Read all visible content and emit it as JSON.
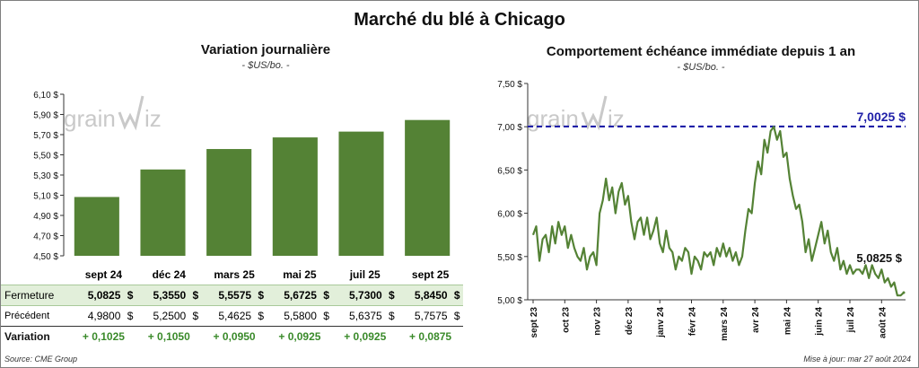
{
  "main_title": "Marché du blé à Chicago",
  "left_panel": {
    "title": "Variation journalière",
    "unit": "- $US/bo. -"
  },
  "right_panel": {
    "title": "Comportement échéance immédiate depuis 1 an",
    "unit": "- $US/bo. -"
  },
  "watermark": {
    "text_left": "grain",
    "text_right": "iz"
  },
  "colors": {
    "bar": "#548235",
    "line": "#548235",
    "ref_line": "#1f1fa8",
    "ref_label": "#1f1fa8",
    "fermeture_bg": "#e2efda",
    "variation_text": "#3a8a2a"
  },
  "table": {
    "row_labels": {
      "fermeture": "Fermeture",
      "precedent": "Précédent",
      "variation": "Variation"
    },
    "currency": "$",
    "columns": [
      {
        "contract": "sept 24",
        "fermeture": "5,0825",
        "precedent": "4,9800",
        "variation": "+ 0,1025"
      },
      {
        "contract": "déc 24",
        "fermeture": "5,3550",
        "precedent": "5,2500",
        "variation": "+ 0,1050"
      },
      {
        "contract": "mars 25",
        "fermeture": "5,5575",
        "precedent": "5,4625",
        "variation": "+ 0,0950"
      },
      {
        "contract": "mai 25",
        "fermeture": "5,6725",
        "precedent": "5,5800",
        "variation": "+ 0,0925"
      },
      {
        "contract": "juil 25",
        "fermeture": "5,7300",
        "precedent": "5,6375",
        "variation": "+ 0,0925"
      },
      {
        "contract": "sept 25",
        "fermeture": "5,8450",
        "precedent": "5,7575",
        "variation": "+ 0,0875"
      }
    ]
  },
  "footer": {
    "source": "Source: CME Group",
    "updated": "Mise à jour: mar 27 août 2024"
  },
  "chart_data": [
    {
      "type": "bar",
      "title": "Variation journalière",
      "categories": [
        "sept 24",
        "déc 24",
        "mars 25",
        "mai 25",
        "juil 25",
        "sept 25"
      ],
      "values": [
        5.0825,
        5.355,
        5.5575,
        5.6725,
        5.73,
        5.845
      ],
      "ylim": [
        4.5,
        6.1
      ],
      "yticks": [
        4.5,
        4.7,
        4.9,
        5.1,
        5.3,
        5.5,
        5.7,
        5.9,
        6.1
      ],
      "ytick_labels": [
        "4,50 $",
        "4,70 $",
        "4,90 $",
        "5,10 $",
        "5,30 $",
        "5,50 $",
        "5,70 $",
        "5,90 $",
        "6,10 $"
      ],
      "grid": false
    },
    {
      "type": "line",
      "title": "Comportement échéance immédiate depuis 1 an",
      "ylim": [
        5.0,
        7.5
      ],
      "yticks": [
        5.0,
        5.5,
        6.0,
        6.5,
        7.0,
        7.5
      ],
      "ytick_labels": [
        "5,00 $",
        "5,50 $",
        "6,00 $",
        "6,50 $",
        "7,00 $",
        "7,50 $"
      ],
      "xticks": [
        "sept 23",
        "oct 23",
        "nov 23",
        "déc 23",
        "janv 24",
        "févr 24",
        "mars 24",
        "avr 24",
        "mai 24",
        "juin 24",
        "juil 24",
        "août 24"
      ],
      "reference_line": {
        "value": 7.0025,
        "label": "7,0025 $"
      },
      "last_value_label": "5,0825 $",
      "x": [
        0,
        0.1,
        0.2,
        0.3,
        0.4,
        0.5,
        0.6,
        0.7,
        0.8,
        0.9,
        1.0,
        1.1,
        1.2,
        1.3,
        1.4,
        1.5,
        1.6,
        1.7,
        1.8,
        1.9,
        2.0,
        2.1,
        2.2,
        2.3,
        2.4,
        2.5,
        2.6,
        2.7,
        2.8,
        2.9,
        3.0,
        3.1,
        3.2,
        3.3,
        3.4,
        3.5,
        3.6,
        3.7,
        3.8,
        3.9,
        4.0,
        4.1,
        4.2,
        4.3,
        4.4,
        4.5,
        4.6,
        4.7,
        4.8,
        4.9,
        5.0,
        5.1,
        5.2,
        5.3,
        5.4,
        5.5,
        5.6,
        5.7,
        5.8,
        5.9,
        6.0,
        6.1,
        6.2,
        6.3,
        6.4,
        6.5,
        6.6,
        6.7,
        6.8,
        6.9,
        7.0,
        7.1,
        7.2,
        7.3,
        7.4,
        7.5,
        7.6,
        7.7,
        7.8,
        7.9,
        8.0,
        8.1,
        8.2,
        8.3,
        8.4,
        8.5,
        8.6,
        8.7,
        8.8,
        8.9,
        9.0,
        9.1,
        9.2,
        9.3,
        9.4,
        9.5,
        9.6,
        9.7,
        9.8,
        9.9,
        10.0,
        10.1,
        10.2,
        10.3,
        10.4,
        10.5,
        10.6,
        10.7,
        10.8,
        10.9,
        11.0,
        11.1,
        11.2,
        11.3,
        11.4,
        11.5,
        11.6,
        11.7
      ],
      "y": [
        5.75,
        5.85,
        5.45,
        5.7,
        5.75,
        5.55,
        5.85,
        5.65,
        5.9,
        5.75,
        5.85,
        5.6,
        5.75,
        5.6,
        5.5,
        5.45,
        5.6,
        5.35,
        5.5,
        5.55,
        5.4,
        6.0,
        6.15,
        6.4,
        6.15,
        6.3,
        6.0,
        6.25,
        6.35,
        6.1,
        6.2,
        5.9,
        5.7,
        5.9,
        5.95,
        5.75,
        5.95,
        5.7,
        5.8,
        5.95,
        5.65,
        5.55,
        5.8,
        5.6,
        5.55,
        5.35,
        5.5,
        5.45,
        5.6,
        5.55,
        5.3,
        5.5,
        5.45,
        5.35,
        5.55,
        5.5,
        5.55,
        5.4,
        5.6,
        5.5,
        5.65,
        5.5,
        5.6,
        5.45,
        5.55,
        5.4,
        5.5,
        5.8,
        6.05,
        6.0,
        6.35,
        6.6,
        6.45,
        6.85,
        6.7,
        6.95,
        7.0,
        6.85,
        6.95,
        6.65,
        6.7,
        6.4,
        6.2,
        6.05,
        6.1,
        5.9,
        5.55,
        5.7,
        5.45,
        5.6,
        5.75,
        5.9,
        5.65,
        5.8,
        5.55,
        5.45,
        5.6,
        5.35,
        5.45,
        5.3,
        5.4,
        5.3,
        5.35,
        5.35,
        5.3,
        5.4,
        5.25,
        5.4,
        5.3,
        5.25,
        5.35,
        5.2,
        5.25,
        5.15,
        5.2,
        5.05,
        5.05,
        5.0825
      ]
    }
  ]
}
